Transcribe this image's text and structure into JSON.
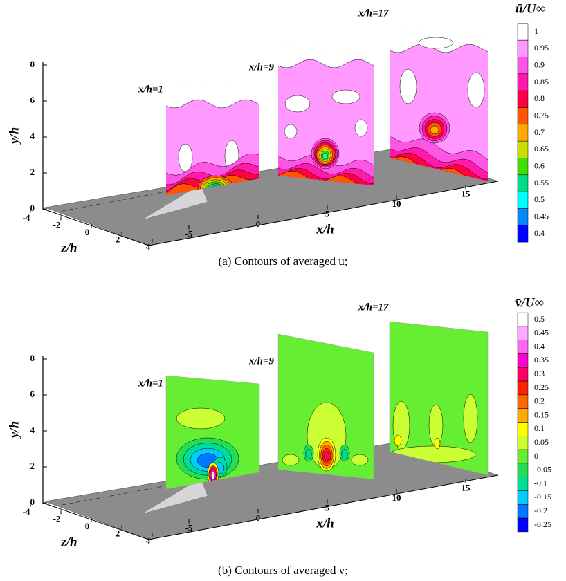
{
  "chart_data": [
    {
      "type": "contour",
      "caption": "(a) Contours of averaged u;",
      "colorbar_title": "ū/U∞",
      "levels": [
        1,
        0.95,
        0.9,
        0.85,
        0.8,
        0.75,
        0.7,
        0.65,
        0.6,
        0.55,
        0.5,
        0.45,
        0.4
      ],
      "colors": [
        "#ffffff",
        "#ff99ff",
        "#ff55e6",
        "#ff1aaa",
        "#ff0044",
        "#ff5500",
        "#ffaa00",
        "#ccdd00",
        "#44dd00",
        "#00dd88",
        "#00ffff",
        "#0088ff",
        "#0000ff"
      ],
      "plane_labels": [
        "x/h=1",
        "x/h=9",
        "x/h=17"
      ],
      "xlabel": "x/h",
      "ylabel": "y/h",
      "zlabel": "z/h",
      "xticks": [
        -5,
        0,
        5,
        10,
        15
      ],
      "yticks": [
        0,
        2,
        4,
        6,
        8
      ],
      "zticks": [
        -4,
        -2,
        0,
        2,
        4
      ]
    },
    {
      "type": "contour",
      "caption": "(b) Contours of averaged v;",
      "colorbar_title": "v̄/U∞",
      "levels": [
        0.5,
        0.45,
        0.4,
        0.35,
        0.3,
        0.25,
        0.2,
        0.15,
        0.1,
        0.05,
        0,
        -0.05,
        -0.1,
        -0.15,
        -0.2,
        -0.25
      ],
      "colors": [
        "#ffffff",
        "#ffaaff",
        "#ff66ee",
        "#ff00cc",
        "#ff0066",
        "#ff2200",
        "#ff6600",
        "#ffaa00",
        "#ffff00",
        "#ccff33",
        "#66ee33",
        "#22dd55",
        "#00dd99",
        "#00ccff",
        "#0077ff",
        "#0000ff"
      ],
      "plane_labels": [
        "x/h=1",
        "x/h=9",
        "x/h=17"
      ],
      "xlabel": "x/h",
      "ylabel": "y/h",
      "zlabel": "z/h",
      "xticks": [
        -5,
        0,
        5,
        10,
        15
      ],
      "yticks": [
        0,
        2,
        4,
        6,
        8
      ],
      "zticks": [
        -4,
        -2,
        0,
        2,
        4
      ]
    }
  ]
}
